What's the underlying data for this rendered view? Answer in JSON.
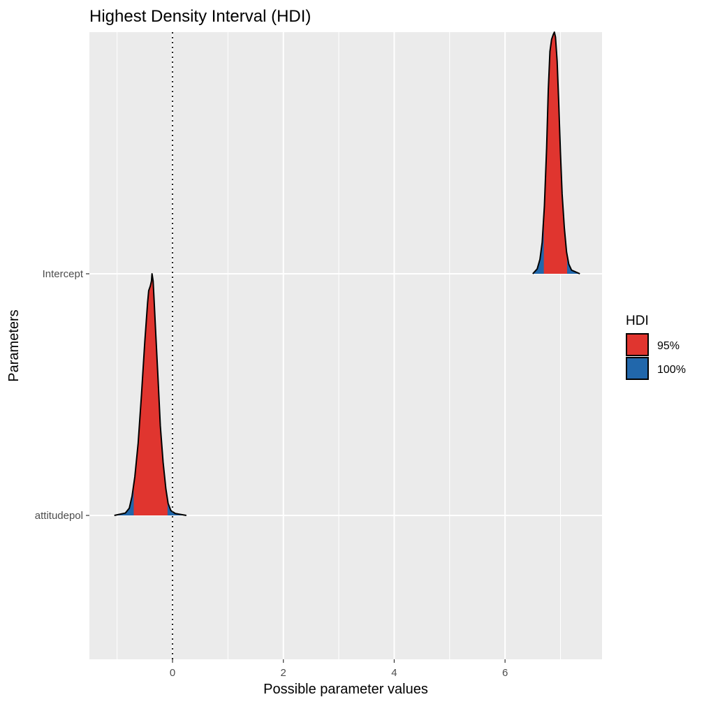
{
  "chart_data": {
    "type": "area",
    "title": "Highest Density Interval (HDI)",
    "xlabel": "Possible parameter values",
    "ylabel": "Parameters",
    "xlim": [
      -1.5,
      7.75
    ],
    "x_ticks": [
      0,
      2,
      4,
      6
    ],
    "y_ticks": [
      "attitudepol",
      "Intercept"
    ],
    "grid": true,
    "reference_line": {
      "x": 0,
      "style": "dotted"
    },
    "legend": {
      "title": "HDI",
      "position": "right",
      "entries": [
        {
          "label": "95%",
          "color": "#e0352f"
        },
        {
          "label": "100%",
          "color": "#2167ab"
        }
      ]
    },
    "series": [
      {
        "parameter": "attitudepol",
        "hdi95": [
          -0.7,
          -0.09
        ],
        "hdi100": [
          -1.05,
          0.25
        ],
        "density": [
          [
            -1.05,
            0.0
          ],
          [
            -0.85,
            0.01
          ],
          [
            -0.78,
            0.03
          ],
          [
            -0.73,
            0.08
          ],
          [
            -0.68,
            0.16
          ],
          [
            -0.62,
            0.3
          ],
          [
            -0.56,
            0.5
          ],
          [
            -0.5,
            0.72
          ],
          [
            -0.45,
            0.88
          ],
          [
            -0.43,
            0.93
          ],
          [
            -0.4,
            0.95
          ],
          [
            -0.38,
            0.97
          ],
          [
            -0.37,
            1.0
          ],
          [
            -0.35,
            0.97
          ],
          [
            -0.33,
            0.88
          ],
          [
            -0.3,
            0.74
          ],
          [
            -0.26,
            0.56
          ],
          [
            -0.22,
            0.37
          ],
          [
            -0.17,
            0.22
          ],
          [
            -0.12,
            0.11
          ],
          [
            -0.08,
            0.05
          ],
          [
            -0.03,
            0.02
          ],
          [
            0.05,
            0.008
          ],
          [
            0.25,
            0.0
          ]
        ]
      },
      {
        "parameter": "Intercept",
        "hdi95": [
          6.7,
          7.12
        ],
        "hdi100": [
          6.5,
          7.35
        ],
        "density": [
          [
            6.5,
            0.0
          ],
          [
            6.58,
            0.02
          ],
          [
            6.63,
            0.06
          ],
          [
            6.67,
            0.13
          ],
          [
            6.71,
            0.28
          ],
          [
            6.75,
            0.52
          ],
          [
            6.78,
            0.76
          ],
          [
            6.81,
            0.92
          ],
          [
            6.84,
            0.97
          ],
          [
            6.87,
            0.99
          ],
          [
            6.89,
            1.0
          ],
          [
            6.91,
            0.98
          ],
          [
            6.94,
            0.88
          ],
          [
            6.97,
            0.7
          ],
          [
            7.0,
            0.5
          ],
          [
            7.03,
            0.33
          ],
          [
            7.07,
            0.19
          ],
          [
            7.11,
            0.09
          ],
          [
            7.15,
            0.04
          ],
          [
            7.2,
            0.015
          ],
          [
            7.35,
            0.0
          ]
        ]
      }
    ]
  }
}
